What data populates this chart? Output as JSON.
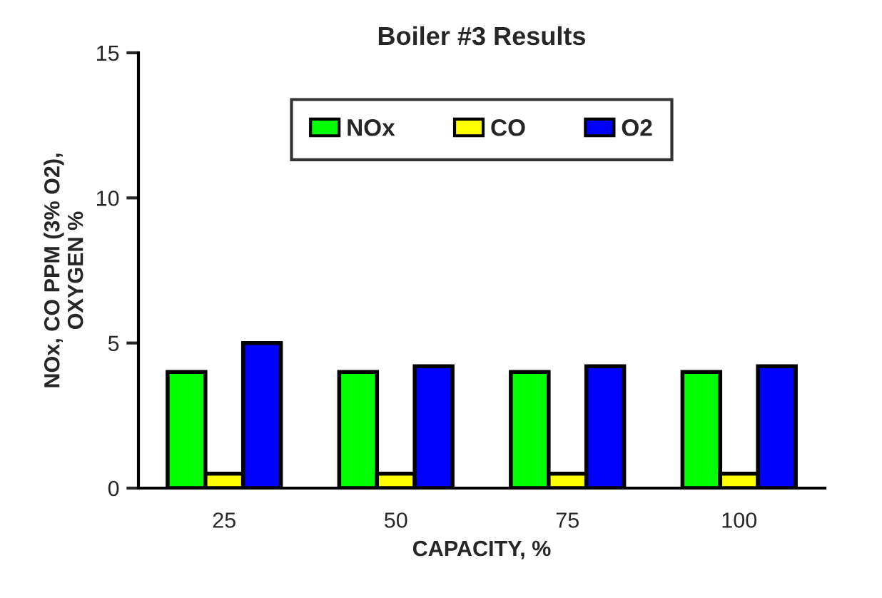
{
  "chart_data": {
    "type": "bar",
    "title": "Boiler #3 Results",
    "xlabel": "CAPACITY, %",
    "ylabel": "NOx, CO PPM (3% O2),\nOXYGEN %",
    "categories": [
      "25",
      "50",
      "75",
      "100"
    ],
    "series": [
      {
        "name": "NOx",
        "color": "#00ff00",
        "values": [
          4,
          4,
          4,
          4
        ]
      },
      {
        "name": "CO",
        "color": "#ffff00",
        "values": [
          0.5,
          0.5,
          0.5,
          0.5
        ]
      },
      {
        "name": "O2",
        "color": "#0000ff",
        "values": [
          5,
          4.2,
          4.2,
          4.2
        ]
      }
    ],
    "ylim": [
      0,
      15
    ],
    "yticks": [
      0,
      5,
      10,
      15
    ],
    "legend": "top",
    "grid": false
  }
}
